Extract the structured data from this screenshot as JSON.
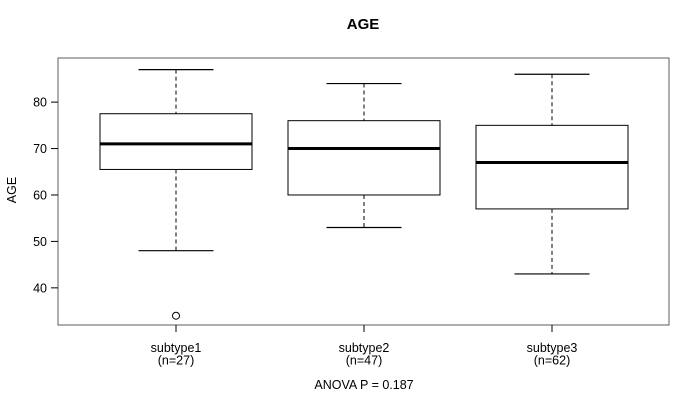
{
  "chart_data": {
    "type": "boxplot",
    "title": "AGE",
    "ylabel": "AGE",
    "xlabel": "",
    "footer": "ANOVA P = 0.187",
    "grid": false,
    "legend": false,
    "ylim": [
      32,
      89.5
    ],
    "yticks": [
      40,
      50,
      60,
      70,
      80
    ],
    "groups": [
      {
        "label": "subtype1",
        "sublabel": "(n=27)",
        "n": 27,
        "whisker_low": 48,
        "q1": 65.5,
        "median": 71,
        "q3": 77.5,
        "whisker_high": 87,
        "outliers": [
          34
        ]
      },
      {
        "label": "subtype2",
        "sublabel": "(n=47)",
        "n": 47,
        "whisker_low": 53,
        "q1": 60,
        "median": 70,
        "q3": 76,
        "whisker_high": 84,
        "outliers": []
      },
      {
        "label": "subtype3",
        "sublabel": "(n=62)",
        "n": 62,
        "whisker_low": 43,
        "q1": 57,
        "median": 67,
        "q3": 75,
        "whisker_high": 86,
        "outliers": []
      }
    ],
    "colors": {
      "line": "#000000",
      "frame": "#5e5e5e",
      "text": "#000000",
      "box_fill": "#ffffff",
      "background": "#ffffff"
    }
  }
}
